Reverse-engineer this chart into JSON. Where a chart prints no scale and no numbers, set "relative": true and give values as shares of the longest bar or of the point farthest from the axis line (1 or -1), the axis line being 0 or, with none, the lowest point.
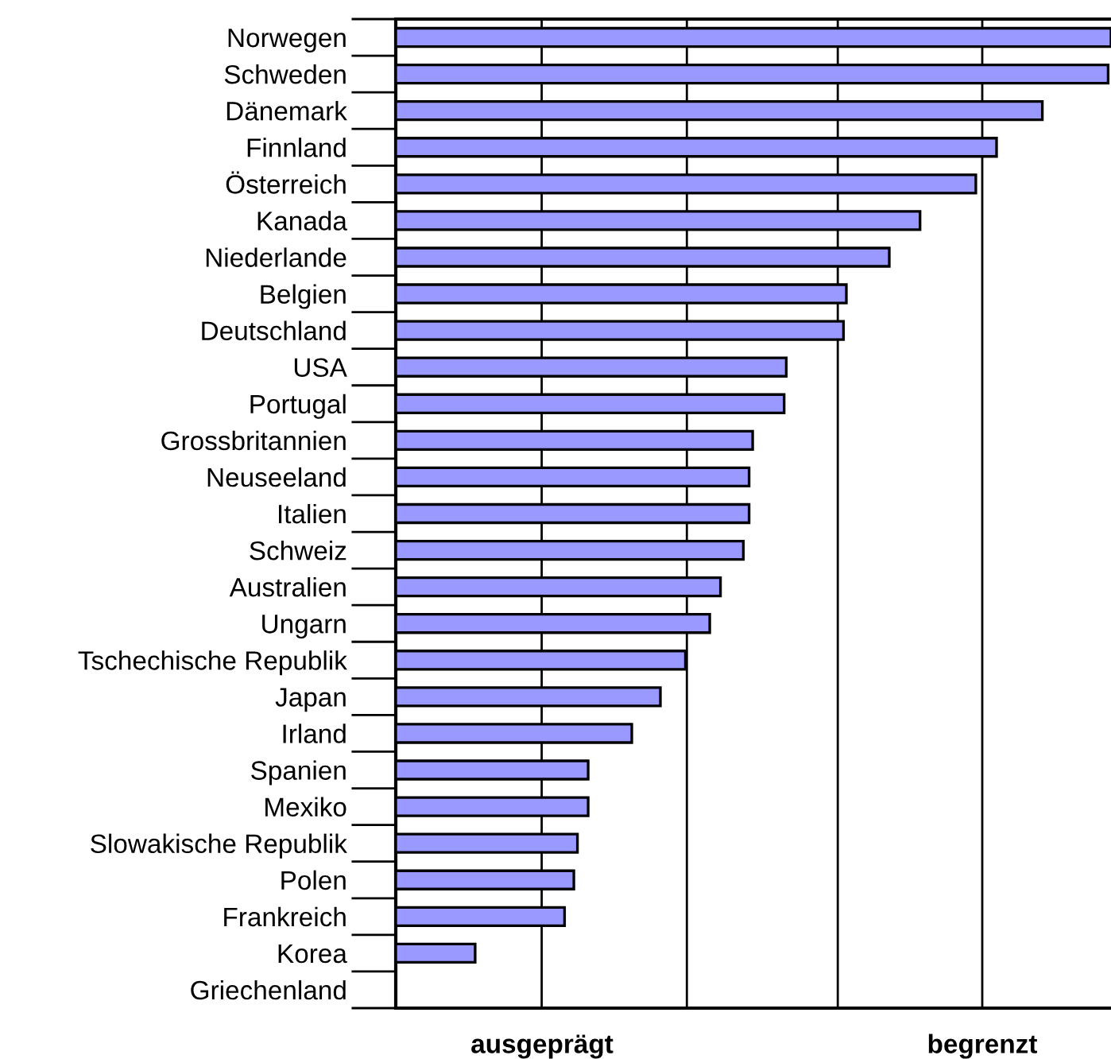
{
  "chart_data": {
    "type": "bar",
    "orientation": "horizontal",
    "relative": true,
    "categories": [
      "Norwegen",
      "Schweden",
      "Dänemark",
      "Finnland",
      "Österreich",
      "Kanada",
      "Niederlande",
      "Belgien",
      "Deutschland",
      "USA",
      "Portugal",
      "Grossbritannien",
      "Neuseeland",
      "Italien",
      "Schweiz",
      "Australien",
      "Ungarn",
      "Tschechische Republik",
      "Japan",
      "Irland",
      "Spanien",
      "Mexiko",
      "Slowakische Republik",
      "Polen",
      "Frankreich",
      "Korea",
      "Griechenland"
    ],
    "values": [
      1,
      0.996,
      0.904,
      0.84,
      0.811,
      0.733,
      0.69,
      0.63,
      0.626,
      0.546,
      0.543,
      0.499,
      0.494,
      0.494,
      0.486,
      0.454,
      0.439,
      0.405,
      0.37,
      0.33,
      0.269,
      0.269,
      0.254,
      0.249,
      0.236,
      0.111,
      null
    ],
    "color": "#9999ff",
    "ref_lines": [
      {
        "axis": "x",
        "value": 0.204
      },
      {
        "axis": "x",
        "value": 0.407
      },
      {
        "axis": "x",
        "value": 0.618
      },
      {
        "axis": "x",
        "value": 0.82
      }
    ],
    "annotations": [
      "ausgeprägt",
      "begrenzt"
    ]
  }
}
